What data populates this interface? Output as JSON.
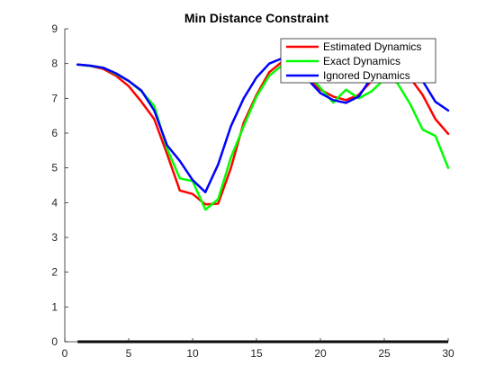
{
  "chart_data": {
    "type": "line",
    "title": "Min Distance Constraint",
    "xlabel": "",
    "ylabel": "",
    "xlim": [
      0,
      30
    ],
    "ylim": [
      0,
      9
    ],
    "xticks": [
      0,
      5,
      10,
      15,
      20,
      25,
      30
    ],
    "yticks": [
      0,
      1,
      2,
      3,
      4,
      5,
      6,
      7,
      8,
      9
    ],
    "grid": false,
    "legend_position": "top-right",
    "baseline": {
      "x": [
        1,
        30
      ],
      "y": [
        0,
        0
      ],
      "color": "#000000"
    },
    "series": [
      {
        "name": "Estimated Dynamics",
        "color": "#ff0000",
        "x": [
          1,
          2,
          3,
          4,
          5,
          6,
          7,
          8,
          9,
          10,
          11,
          12,
          13,
          14,
          15,
          16,
          17,
          18,
          19,
          20,
          21,
          22,
          23,
          24,
          25,
          26,
          27,
          28,
          29,
          30
        ],
        "y": [
          7.97,
          7.93,
          7.85,
          7.65,
          7.35,
          6.9,
          6.4,
          5.4,
          4.35,
          4.25,
          3.95,
          3.97,
          5.0,
          6.3,
          7.1,
          7.75,
          8.05,
          7.95,
          7.55,
          7.25,
          7.05,
          6.95,
          7.1,
          7.5,
          7.8,
          7.85,
          7.6,
          7.1,
          6.4,
          5.98
        ]
      },
      {
        "name": "Exact Dynamics",
        "color": "#00ff00",
        "x": [
          1,
          2,
          3,
          4,
          5,
          6,
          7,
          8,
          9,
          10,
          11,
          12,
          13,
          14,
          15,
          16,
          17,
          18,
          19,
          20,
          21,
          22,
          23,
          24,
          25,
          26,
          27,
          28,
          29,
          30
        ],
        "y": [
          7.97,
          7.93,
          7.88,
          7.7,
          7.5,
          7.2,
          6.78,
          5.55,
          4.7,
          4.62,
          3.8,
          4.1,
          5.3,
          6.2,
          7.05,
          7.65,
          7.95,
          8.0,
          7.7,
          7.3,
          6.88,
          7.25,
          7.0,
          7.2,
          7.55,
          7.45,
          6.85,
          6.1,
          5.92,
          5.0
        ]
      },
      {
        "name": "Ignored Dynamics",
        "color": "#0000ff",
        "x": [
          1,
          2,
          3,
          4,
          5,
          6,
          7,
          8,
          9,
          10,
          11,
          12,
          13,
          14,
          15,
          16,
          17,
          18,
          19,
          20,
          21,
          22,
          23,
          24,
          25,
          26,
          27,
          28,
          29,
          30
        ],
        "y": [
          7.97,
          7.94,
          7.88,
          7.72,
          7.5,
          7.22,
          6.65,
          5.65,
          5.2,
          4.65,
          4.3,
          5.1,
          6.2,
          7.0,
          7.6,
          8.0,
          8.15,
          7.95,
          7.55,
          7.15,
          6.95,
          6.87,
          7.05,
          7.6,
          8.1,
          8.15,
          7.95,
          7.5,
          6.9,
          6.65
        ]
      }
    ]
  }
}
